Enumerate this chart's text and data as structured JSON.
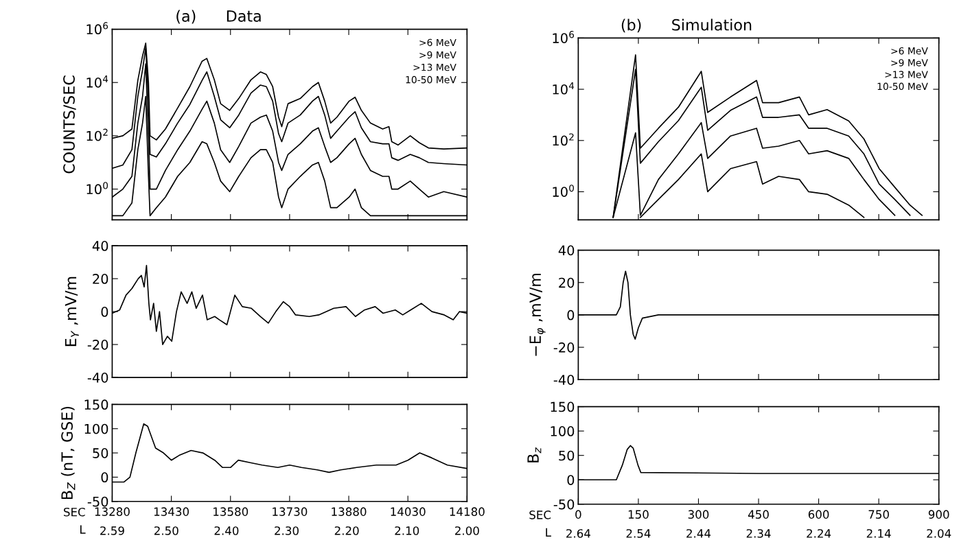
{
  "chart_data": [
    {
      "type": "line",
      "title": "(a)      Data",
      "ylabel": "COUNTS/SEC",
      "log": true,
      "tick_labels": "y",
      "annotations": [
        ">6 MeV",
        ">9 MeV",
        ">13 MeV",
        "10-50 MeV"
      ],
      "xlim": [
        13280,
        14180
      ],
      "xticks": [
        13280,
        13430,
        13580,
        13730,
        13880,
        14030,
        14180
      ],
      "ylim": [
        0.07,
        1000000
      ],
      "yticks": [
        {
          "value": 1,
          "label": "10$^{0}$"
        },
        {
          "value": 100,
          "label": "10$^{2}$"
        },
        {
          "value": 10000,
          "label": "10$^{4}$"
        },
        {
          "value": 1000000,
          "label": "10$^{6}$"
        }
      ],
      "x": [
        13280,
        13307,
        13330,
        13345,
        13357,
        13365,
        13372,
        13376,
        13392,
        13415,
        13446,
        13477,
        13508,
        13520,
        13539,
        13555,
        13578,
        13601,
        13632,
        13656,
        13671,
        13687,
        13702,
        13710,
        13726,
        13757,
        13788,
        13803,
        13819,
        13834,
        13850,
        13881,
        13896,
        13912,
        13935,
        13966,
        13982,
        13989,
        14005,
        14036,
        14059,
        14082,
        14121,
        14180
      ],
      "series": [
        {
          "color": "#000000",
          "values": [
            80,
            100,
            180,
            12000,
            100000,
            300000,
            10000,
            100,
            70,
            180,
            1100,
            7000,
            63000,
            80000,
            12600,
            1600,
            900,
            2500,
            12600,
            25000,
            20000,
            7000,
            500,
            220,
            1600,
            2500,
            7000,
            10000,
            2000,
            300,
            500,
            2000,
            2800,
            900,
            300,
            180,
            220,
            60,
            45,
            100,
            55,
            35,
            32,
            35
          ]
        },
        {
          "color": "#000000",
          "values": [
            6,
            8,
            30,
            3000,
            30000,
            200000,
            2000,
            20,
            16,
            50,
            300,
            1500,
            12000,
            25000,
            3000,
            400,
            200,
            600,
            4000,
            8000,
            7000,
            2000,
            120,
            60,
            300,
            600,
            2000,
            3000,
            600,
            80,
            150,
            500,
            800,
            200,
            60,
            50,
            50,
            15,
            12,
            20,
            15,
            10,
            9,
            8
          ]
        },
        {
          "color": "#000000",
          "values": [
            0.5,
            1,
            3,
            300,
            3000,
            50000,
            100,
            1,
            1,
            5,
            30,
            150,
            1000,
            2000,
            300,
            30,
            10,
            40,
            300,
            500,
            600,
            150,
            10,
            5,
            20,
            50,
            150,
            200,
            40,
            10,
            15,
            50,
            80,
            20,
            5,
            3,
            3,
            1,
            1,
            2,
            1,
            0.5,
            0.8,
            0.5
          ]
        },
        {
          "color": "#000000",
          "values": [
            0.1,
            0.1,
            0.3,
            30,
            300,
            3000,
            3,
            0.1,
            0.2,
            0.5,
            3,
            10,
            60,
            50,
            10,
            2,
            0.8,
            3,
            15,
            30,
            30,
            10,
            0.5,
            0.2,
            1,
            3,
            8,
            10,
            2,
            0.2,
            0.2,
            0.5,
            1,
            0.2,
            0.1,
            0.1,
            0.1,
            0.1,
            0.1,
            0.1,
            0.1,
            0.1,
            0.1,
            0.1
          ]
        }
      ]
    },
    {
      "type": "line",
      "title": "(b)      Simulation",
      "log": true,
      "tick_labels": "y",
      "annotations": [
        ">6 MeV",
        ">9 MeV",
        ">13 MeV",
        "10-50 MeV"
      ],
      "xlim": [
        0,
        900
      ],
      "xticks": [
        0,
        150,
        300,
        450,
        600,
        750,
        900
      ],
      "ylim": [
        0.08,
        1000000
      ],
      "yticks": [
        {
          "value": 1,
          "label": "10$^{0}$"
        },
        {
          "value": 100,
          "label": "10$^{2}$"
        },
        {
          "value": 10000,
          "label": "10$^{4}$"
        },
        {
          "value": 1000000,
          "label": "10$^{6}$"
        }
      ],
      "series": [
        {
          "color": "#000000",
          "x": [
            87,
            143,
            155,
            200,
            250,
            307,
            323,
            380,
            445,
            460,
            500,
            552,
            575,
            621,
            675,
            713,
            751,
            790,
            828,
            858
          ],
          "values": [
            0.1,
            220000,
            50,
            300,
            2000,
            50000,
            1250,
            5000,
            22000,
            3000,
            3000,
            5000,
            1000,
            1600,
            580,
            115,
            8,
            1.5,
            0.3,
            0.12
          ]
        },
        {
          "color": "#000000",
          "x": [
            87,
            143,
            155,
            200,
            250,
            307,
            323,
            380,
            445,
            460,
            500,
            552,
            575,
            621,
            675,
            713,
            751,
            790,
            828
          ],
          "values": [
            0.1,
            60000,
            13,
            90,
            600,
            12000,
            250,
            1500,
            5000,
            800,
            800,
            1000,
            300,
            300,
            150,
            30,
            2,
            0.5,
            0.12
          ]
        },
        {
          "color": "#000000",
          "x": [
            87,
            143,
            155,
            200,
            250,
            307,
            323,
            380,
            445,
            460,
            500,
            552,
            575,
            621,
            675,
            713,
            751,
            790
          ],
          "values": [
            0.1,
            200,
            0.12,
            3,
            30,
            500,
            20,
            150,
            300,
            50,
            60,
            100,
            30,
            40,
            20,
            3,
            0.5,
            0.12
          ]
        },
        {
          "color": "#000000",
          "x": [
            155,
            200,
            250,
            307,
            323,
            380,
            445,
            460,
            500,
            552,
            575,
            621,
            675,
            713
          ],
          "values": [
            0.1,
            0.5,
            3,
            30,
            1,
            8,
            15,
            2,
            4,
            3,
            1,
            0.8,
            0.3,
            0.1
          ]
        }
      ]
    },
    {
      "type": "line",
      "ylabel": "E$_{Y}$ ,mV/m",
      "tick_labels": "y",
      "xlim": [
        13280,
        14180
      ],
      "xticks": [
        13280,
        13430,
        13580,
        13730,
        13880,
        14030,
        14180
      ],
      "ylim": [
        -40,
        40
      ],
      "yticks": [
        -40,
        -20,
        0,
        20,
        40
      ],
      "series": [
        {
          "color": "#000000",
          "x": [
            13280,
            13299,
            13315,
            13330,
            13346,
            13354,
            13361,
            13367,
            13373,
            13377,
            13385,
            13392,
            13400,
            13408,
            13420,
            13431,
            13443,
            13455,
            13470,
            13482,
            13493,
            13509,
            13521,
            13540,
            13552,
            13571,
            13591,
            13610,
            13633,
            13656,
            13676,
            13695,
            13714,
            13730,
            13745,
            13780,
            13804,
            13842,
            13873,
            13897,
            13920,
            13947,
            13967,
            13998,
            14017,
            14037,
            14064,
            14091,
            14122,
            14145,
            14161,
            14180
          ],
          "values": [
            -1,
            1,
            10,
            14,
            20,
            22,
            15,
            28,
            5,
            -5,
            5,
            -12,
            0,
            -20,
            -15,
            -18,
            0,
            12,
            5,
            12,
            2,
            10,
            -5,
            -3,
            -5,
            -8,
            10,
            3,
            2,
            -3,
            -7,
            0,
            6,
            3,
            -2,
            -3,
            -2,
            2,
            3,
            -3,
            1,
            3,
            -1,
            1,
            -2,
            1,
            5,
            0,
            -2,
            -5,
            0,
            -1
          ]
        }
      ]
    },
    {
      "type": "line",
      "ylabel": "−E$_{φ}$ ,mV/m",
      "tick_labels": "y",
      "xlim": [
        0,
        900
      ],
      "xticks": [
        0,
        150,
        300,
        450,
        600,
        750,
        900
      ],
      "ylim": [
        -40,
        40
      ],
      "yticks": [
        -40,
        -20,
        0,
        20,
        40
      ],
      "series": [
        {
          "color": "#000000",
          "x": [
            0,
            95,
            105,
            112,
            118,
            124,
            130,
            137,
            142,
            150,
            160,
            200,
            900
          ],
          "values": [
            0,
            0,
            5,
            20,
            27,
            20,
            0,
            -12,
            -15,
            -8,
            -2,
            0,
            0
          ]
        }
      ]
    },
    {
      "type": "line",
      "ylabel": "B$_{Z}$ (nT, GSE)",
      "xlabel": "SEC",
      "x2label": "L",
      "xlim": [
        13280,
        14180
      ],
      "xticks": [
        13280,
        13430,
        13580,
        13730,
        13880,
        14030,
        14180
      ],
      "x2lim": [
        2.59,
        2.0
      ],
      "x2ticks": [
        {
          "value": 2.59,
          "label": "2.59"
        },
        {
          "value": 2.5,
          "label": "2.50"
        },
        {
          "value": 2.4,
          "label": "2.40"
        },
        {
          "value": 2.3,
          "label": "2.30"
        },
        {
          "value": 2.2,
          "label": "2.20"
        },
        {
          "value": 2.1,
          "label": "2.10"
        },
        {
          "value": 2.0,
          "label": "2.00"
        }
      ],
      "ylim": [
        -50,
        150
      ],
      "yticks": [
        -50,
        0,
        50,
        100,
        150
      ],
      "series": [
        {
          "color": "#000000",
          "x": [
            13280,
            13310,
            13325,
            13340,
            13360,
            13370,
            13390,
            13410,
            13430,
            13450,
            13480,
            13510,
            13540,
            13560,
            13580,
            13600,
            13630,
            13660,
            13700,
            13730,
            13760,
            13800,
            13830,
            13860,
            13900,
            13950,
            14000,
            14030,
            14060,
            14090,
            14130,
            14180
          ],
          "values": [
            -10,
            -10,
            0,
            50,
            110,
            105,
            60,
            50,
            35,
            45,
            55,
            50,
            35,
            20,
            20,
            35,
            30,
            25,
            20,
            25,
            20,
            15,
            10,
            15,
            20,
            25,
            25,
            35,
            50,
            40,
            25,
            18
          ]
        }
      ]
    },
    {
      "type": "line",
      "ylabel": "B$_{z}$",
      "xlabel": "SEC",
      "x2label": "L",
      "xlim": [
        0,
        900
      ],
      "xticks": [
        0,
        150,
        300,
        450,
        600,
        750,
        900
      ],
      "x2lim": [
        2.64,
        2.04
      ],
      "x2ticks": [
        2.64,
        2.54,
        2.44,
        2.34,
        2.24,
        2.14,
        2.04
      ],
      "ylim": [
        -50,
        150
      ],
      "yticks": [
        -50,
        0,
        50,
        100,
        150
      ],
      "series": [
        {
          "color": "#000000",
          "x": [
            0,
            95,
            110,
            122,
            130,
            137,
            149,
            156,
            450,
            900
          ],
          "values": [
            0,
            0,
            30,
            62,
            70,
            65,
            30,
            15,
            13,
            13
          ]
        }
      ]
    }
  ]
}
